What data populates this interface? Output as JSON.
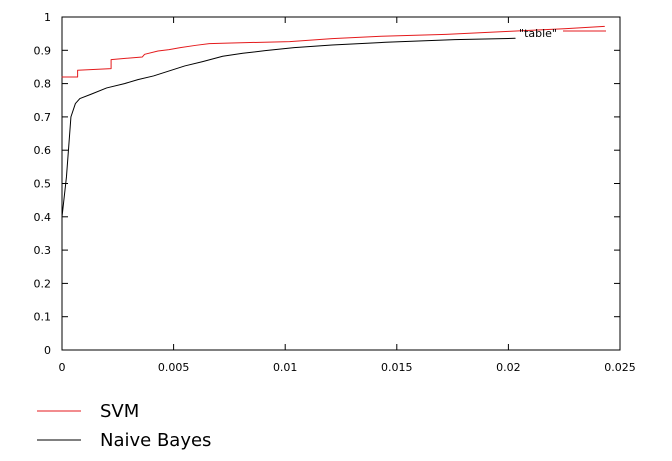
{
  "chart_data": {
    "type": "line",
    "title": "",
    "xlabel": "",
    "ylabel": "",
    "xlim": [
      0,
      0.025
    ],
    "ylim": [
      0,
      1
    ],
    "grid": false,
    "x_ticks": [
      "0",
      "0.005",
      "0.01",
      "0.015",
      "0.02",
      "0.025"
    ],
    "y_ticks": [
      "0",
      "0.1",
      "0.2",
      "0.3",
      "0.4",
      "0.5",
      "0.6",
      "0.7",
      "0.8",
      "0.9",
      "1"
    ],
    "inner_key_label": "\"table\"",
    "series": [
      {
        "name": "SVM",
        "color": "#e41a1c",
        "points": [
          [
            0.0,
            0.82
          ],
          [
            0.0007,
            0.82
          ],
          [
            0.0007,
            0.84
          ],
          [
            0.0022,
            0.845
          ],
          [
            0.0022,
            0.872
          ],
          [
            0.0036,
            0.88
          ],
          [
            0.0037,
            0.888
          ],
          [
            0.0043,
            0.898
          ],
          [
            0.0048,
            0.902
          ],
          [
            0.0053,
            0.908
          ],
          [
            0.006,
            0.915
          ],
          [
            0.0066,
            0.92
          ],
          [
            0.0076,
            0.922
          ],
          [
            0.0102,
            0.926
          ],
          [
            0.0121,
            0.935
          ],
          [
            0.0143,
            0.942
          ],
          [
            0.0172,
            0.948
          ],
          [
            0.02,
            0.957
          ],
          [
            0.0226,
            0.965
          ],
          [
            0.0243,
            0.972
          ]
        ]
      },
      {
        "name": "Naive Bayes",
        "color": "#000000",
        "points": [
          [
            0.0,
            0.4
          ],
          [
            0.0002,
            0.52
          ],
          [
            0.0004,
            0.7
          ],
          [
            0.0006,
            0.74
          ],
          [
            0.0008,
            0.755
          ],
          [
            0.0013,
            0.768
          ],
          [
            0.002,
            0.787
          ],
          [
            0.0028,
            0.8
          ],
          [
            0.0034,
            0.812
          ],
          [
            0.0041,
            0.823
          ],
          [
            0.0048,
            0.838
          ],
          [
            0.0055,
            0.853
          ],
          [
            0.0063,
            0.866
          ],
          [
            0.0072,
            0.882
          ],
          [
            0.0081,
            0.891
          ],
          [
            0.0091,
            0.899
          ],
          [
            0.0104,
            0.908
          ],
          [
            0.0121,
            0.916
          ],
          [
            0.0145,
            0.924
          ],
          [
            0.0176,
            0.932
          ],
          [
            0.0203,
            0.936
          ]
        ]
      }
    ],
    "legend": {
      "placement": "bottom-left",
      "entries": [
        {
          "name": "SVM",
          "color": "#e41a1c"
        },
        {
          "name": "Naive Bayes",
          "color": "#000000"
        }
      ]
    },
    "inner_key_placement": "top-right",
    "inner_key_color": "#e41a1c"
  }
}
